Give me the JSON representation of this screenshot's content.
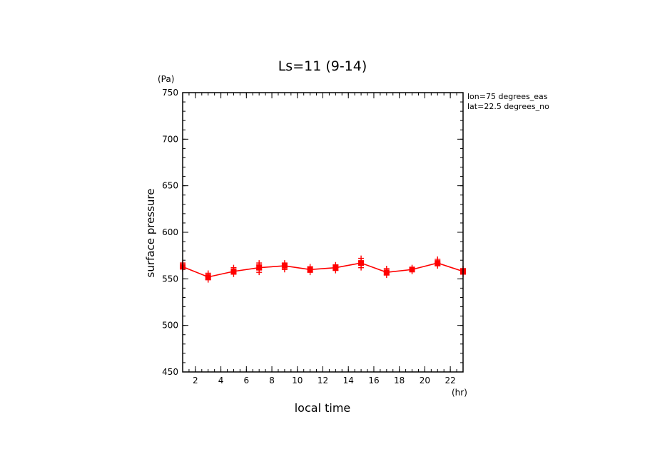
{
  "chart_data": {
    "type": "line",
    "title": "Ls=11 (9-14)",
    "xlabel": "local time",
    "ylabel": "surface pressure",
    "xunit": "(hr)",
    "yunit": "(Pa)",
    "annotations": [
      "lon=75 degrees_eas",
      "lat=22.5 degrees_no"
    ],
    "xlim": [
      1,
      23
    ],
    "ylim": [
      450,
      750
    ],
    "xticks": [
      2,
      4,
      6,
      8,
      10,
      12,
      14,
      16,
      18,
      20,
      22
    ],
    "yticks": [
      450,
      500,
      550,
      600,
      650,
      700,
      750
    ],
    "grid": false,
    "colors": {
      "series": "#ff0000",
      "axis": "#000000"
    },
    "x": [
      1,
      3,
      5,
      7,
      9,
      11,
      13,
      15,
      17,
      19,
      21,
      23
    ],
    "series": [
      {
        "name": "",
        "values": [
          563,
          552,
          558,
          562,
          564,
          560,
          562,
          567,
          557,
          560,
          567,
          558
        ]
      }
    ],
    "scatter": [
      {
        "x": 1,
        "values": [
          561,
          565,
          567
        ]
      },
      {
        "x": 3,
        "values": [
          549,
          552,
          556
        ]
      },
      {
        "x": 5,
        "values": [
          555,
          559,
          562
        ]
      },
      {
        "x": 7,
        "values": [
          557,
          560,
          565,
          567
        ]
      },
      {
        "x": 9,
        "values": [
          560,
          564,
          567
        ]
      },
      {
        "x": 11,
        "values": [
          557,
          560,
          563
        ]
      },
      {
        "x": 13,
        "values": [
          559,
          562,
          565
        ]
      },
      {
        "x": 15,
        "values": [
          562,
          565,
          569,
          572
        ]
      },
      {
        "x": 17,
        "values": [
          554,
          557,
          561
        ]
      },
      {
        "x": 19,
        "values": [
          558,
          560,
          562
        ]
      },
      {
        "x": 21,
        "values": [
          564,
          567,
          571
        ]
      },
      {
        "x": 23,
        "values": [
          555,
          558,
          561
        ]
      }
    ]
  }
}
